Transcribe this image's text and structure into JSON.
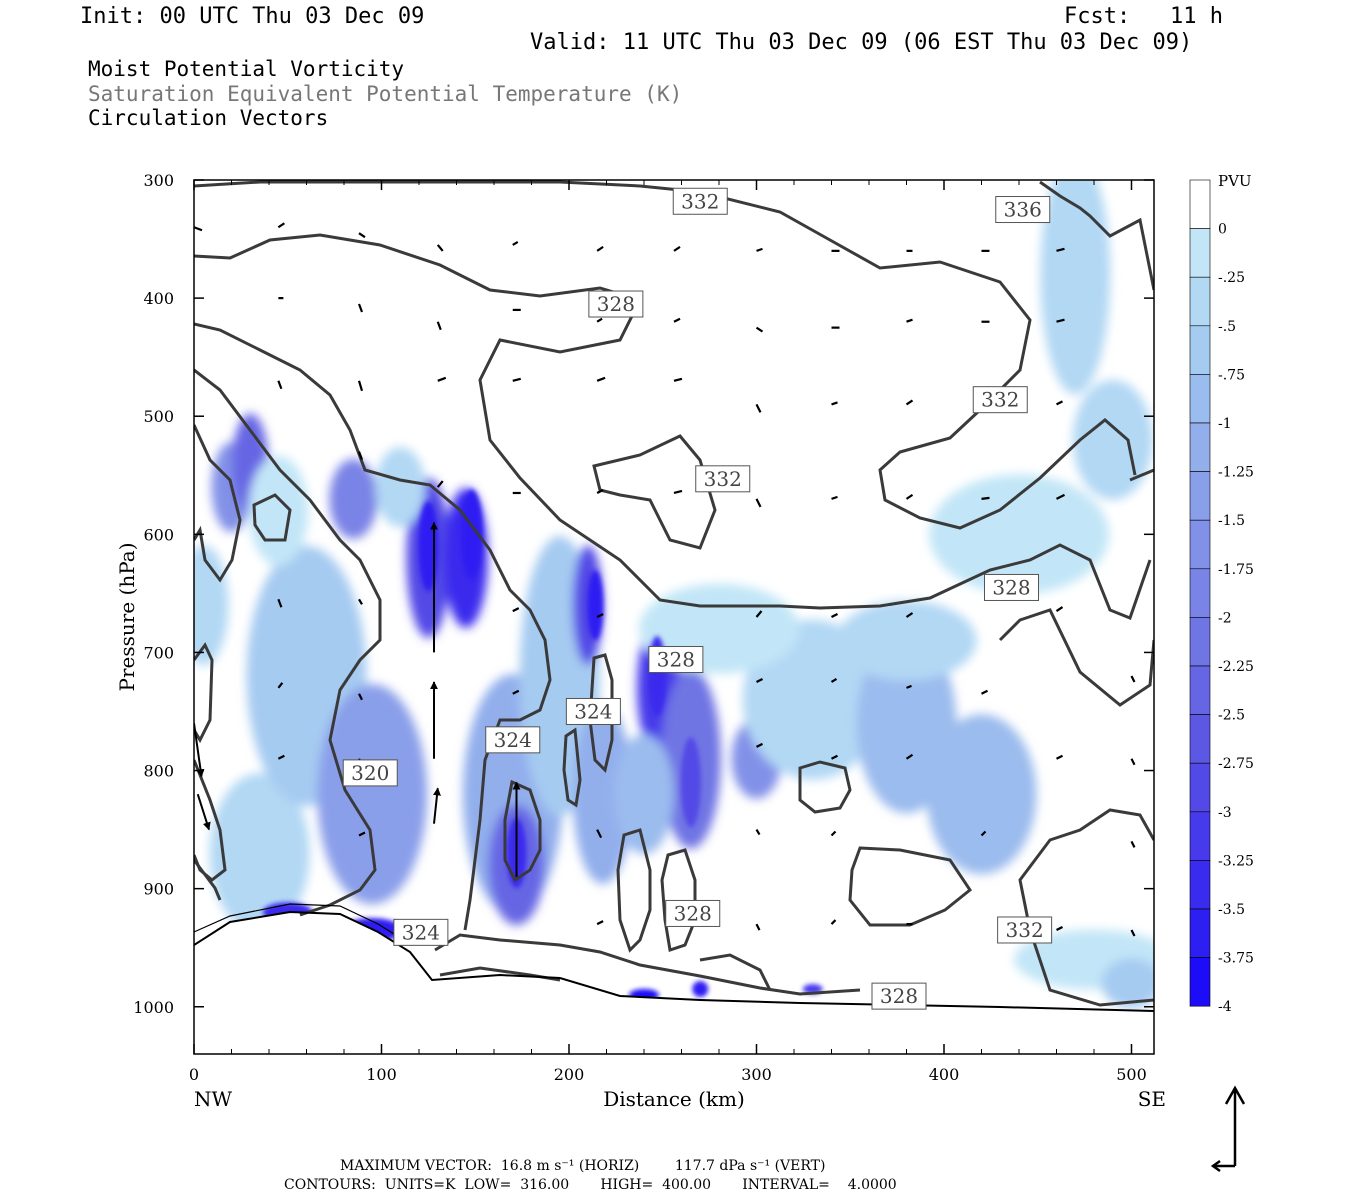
{
  "header": {
    "init": "Init: 00 UTC Thu 03 Dec 09",
    "fcst": "Fcst:   11 h",
    "valid": "Valid: 11 UTC Thu 03 Dec 09 (06 EST Thu 03 Dec 09)"
  },
  "fields": [
    {
      "label": "Moist Potential Vorticity",
      "color": "#000000"
    },
    {
      "label": "Saturation Equivalent Potential Temperature (K)",
      "color": "#777777"
    },
    {
      "label": "Circulation Vectors",
      "color": "#000000"
    }
  ],
  "chart_data": {
    "type": "heatmap",
    "xlabel": "Distance (km)",
    "ylabel": "Pressure (hPa)",
    "xlim": [
      0,
      512
    ],
    "ylim": [
      1040,
      300
    ],
    "x_ticks": [
      0,
      100,
      200,
      300,
      400,
      500
    ],
    "y_ticks": [
      300,
      400,
      500,
      600,
      700,
      800,
      900,
      1000
    ],
    "x_end_labels": {
      "left": "NW",
      "right": "SE"
    },
    "colorbar": {
      "unit": "PVU",
      "levels": [
        0,
        -0.25,
        -0.5,
        -0.75,
        -1,
        -1.25,
        -1.5,
        -1.75,
        -2,
        -2.25,
        -2.5,
        -2.75,
        -3,
        -3.25,
        -3.5,
        -3.75,
        -4
      ],
      "labels": [
        "0",
        "-.25",
        "-.5",
        "-.75",
        "-1",
        "-1.25",
        "-1.5",
        "-1.75",
        "-2",
        "-2.25",
        "-2.5",
        "-2.75",
        "-3",
        "-3.25",
        "-3.5",
        "-3.75",
        "-4"
      ],
      "colors": [
        "#ffffff",
        "#c2e6f7",
        "#b2d8f4",
        "#a6cbf1",
        "#9bbcee",
        "#92afec",
        "#8a9fea",
        "#8291e8",
        "#7a83e6",
        "#7075e4",
        "#6666e4",
        "#5c58e4",
        "#5249e6",
        "#463aea",
        "#3a2cee",
        "#2d1ef2",
        "#1c0cf8"
      ]
    },
    "theta_e_contour_labels": [
      {
        "value": "332",
        "x": 270,
        "p": 318
      },
      {
        "value": "336",
        "x": 442,
        "p": 325
      },
      {
        "value": "328",
        "x": 225,
        "p": 405
      },
      {
        "value": "332",
        "x": 430,
        "p": 486
      },
      {
        "value": "332",
        "x": 282,
        "p": 553
      },
      {
        "value": "328",
        "x": 436,
        "p": 645
      },
      {
        "value": "328",
        "x": 257,
        "p": 706
      },
      {
        "value": "324",
        "x": 213,
        "p": 750
      },
      {
        "value": "324",
        "x": 170,
        "p": 774
      },
      {
        "value": "320",
        "x": 94,
        "p": 802
      },
      {
        "value": "328",
        "x": 266,
        "p": 921
      },
      {
        "value": "332",
        "x": 443,
        "p": 935
      },
      {
        "value": "324",
        "x": 121,
        "p": 937
      },
      {
        "value": "328",
        "x": 376,
        "p": 991
      }
    ],
    "footer": {
      "max_vector": "MAXIMUM VECTOR:  16.8 m s⁻¹ (HORIZ)        117.7 dPa s⁻¹ (VERT)",
      "contours": "CONTOURS:  UNITS=K  LOW=  316.00       HIGH=  400.00       INTERVAL=    4.0000"
    }
  }
}
